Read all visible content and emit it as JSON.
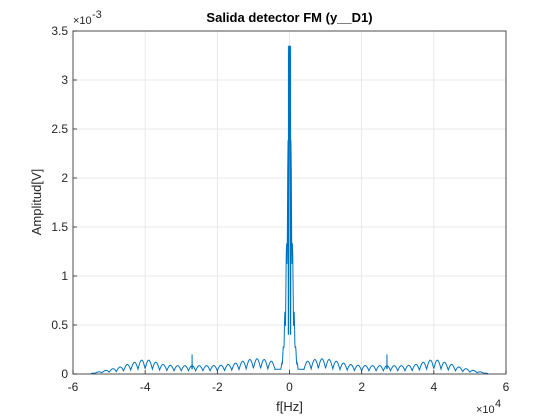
{
  "chart_data": {
    "type": "line",
    "title": "Salida detector FM (y__D1)",
    "xlabel": "f[Hz]",
    "ylabel": "Amplitud[V]",
    "xlim": [
      -60000,
      60000
    ],
    "ylim": [
      0,
      0.0035
    ],
    "x_ticks": [
      -60000,
      -40000,
      -20000,
      0,
      20000,
      40000,
      60000
    ],
    "x_tick_labels": [
      "-6",
      "-4",
      "-2",
      "0",
      "2",
      "4",
      "6"
    ],
    "x_exponent": "×10",
    "x_exponent_power": "4",
    "y_ticks": [
      0,
      0.0005,
      0.001,
      0.0015,
      0.002,
      0.0025,
      0.003,
      0.0035
    ],
    "y_tick_labels": [
      "0",
      "0.5",
      "1",
      "1.5",
      "2",
      "2.5",
      "3",
      "3.5"
    ],
    "y_exponent": "×10",
    "y_exponent_power": "-3",
    "grid": true,
    "color": "#0072BD",
    "series": [
      {
        "description": "Magnitude spectrum, central lobe around 0 Hz with sidelobes, symmetric",
        "x_range": [
          -55000,
          55000
        ],
        "center_peak": 0.00335,
        "center_peaks_x": [
          -300,
          300
        ],
        "sidelobe_floor": 8e-05,
        "sidelobe_max": 0.00015,
        "sidelobe_spacing": 2000,
        "spikes": [
          {
            "x": -27000,
            "y": 0.0002
          },
          {
            "x": 27000,
            "y": 0.0002
          }
        ],
        "shoulder_peaks": [
          {
            "x": -40000,
            "y": 0.00014
          },
          {
            "x": 40000,
            "y": 0.00014
          }
        ]
      }
    ]
  }
}
